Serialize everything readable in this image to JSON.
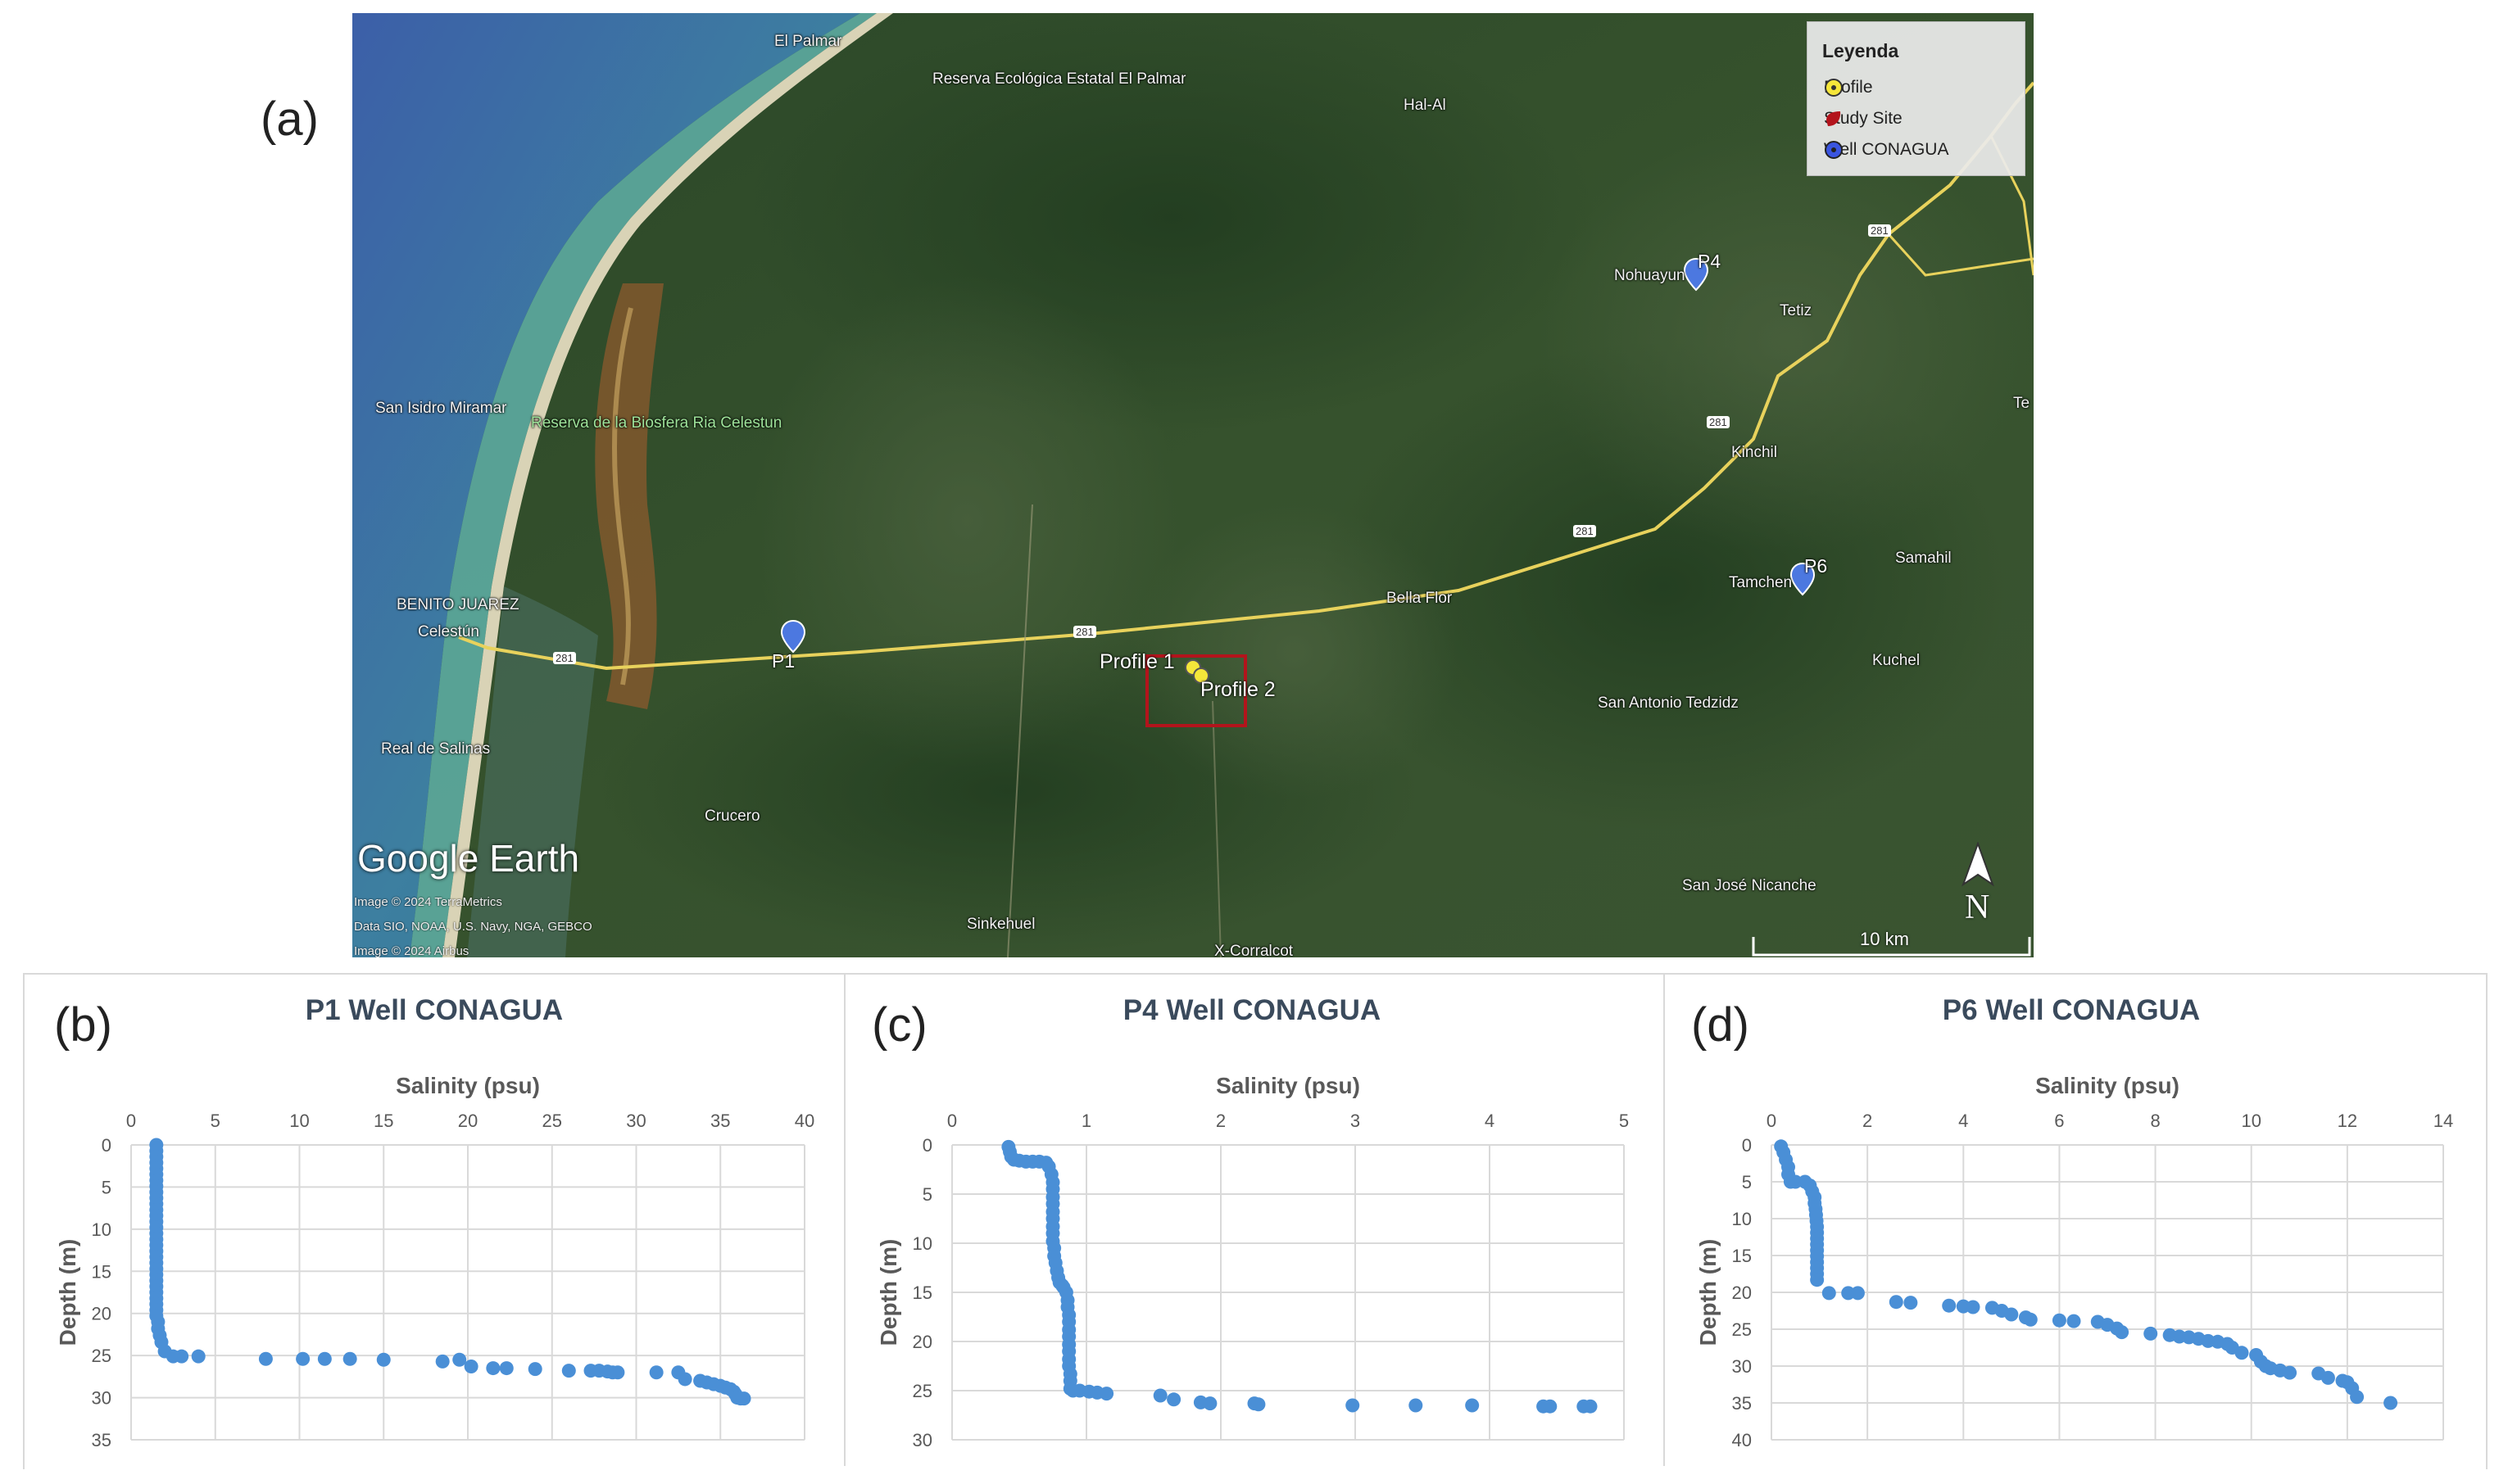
{
  "map": {
    "panel_label": "(a)",
    "legend": {
      "title": "Leyenda",
      "items": [
        {
          "label": "Profile",
          "color": "#f5e63a",
          "icon": "profile-marker-icon"
        },
        {
          "label": "Study Site",
          "color": "#b3141c",
          "icon": "study-site-icon"
        },
        {
          "label": "Well CONAGUA",
          "color": "#3a55e0",
          "icon": "well-marker-icon"
        }
      ]
    },
    "places": {
      "el_palmar": "El Palmar",
      "reserva_el_palmar": "Reserva Ecológica Estatal El Palmar",
      "hal_al": "Hal-Al",
      "nohuayun": "Nohuayun",
      "tetiz": "Tetiz",
      "san_isidro": "San Isidro Miramar",
      "reserva_celestun": "Reserva de la Biosfera Ria Celestun",
      "te": "Te",
      "kinchil": "Kinchil",
      "samahil": "Samahil",
      "tamchen": "Tamchen",
      "benito_juarez": "BENITO JUAREZ",
      "celestun": "Celestún",
      "bella_flor": "Bella Flor",
      "kuchel": "Kuchel",
      "san_antonio": "San Antonio Tedzidz",
      "real_de_salinas": "Real de Salinas",
      "crucero": "Crucero",
      "san_jose": "San José Nicanche",
      "sinkehuel": "Sinkehuel",
      "x_corralcot": "X-Corralcot"
    },
    "markers": {
      "p1": "P1",
      "p4": "P4",
      "p6": "P6",
      "profile1": "Profile 1",
      "profile2": "Profile 2"
    },
    "road_shields": [
      "281",
      "281",
      "281",
      "281",
      "281",
      "281"
    ],
    "logo": "Google Earth",
    "credits": [
      "Image © 2024 TerraMetrics",
      "Data SIO, NOAA, U.S. Navy, NGA, GEBCO",
      "Image © 2024 Airbus"
    ],
    "scale": "10 km",
    "north": "N"
  },
  "chart_data": [
    {
      "panel_label": "(b)",
      "type": "scatter",
      "title": "P1 Well CONAGUA",
      "xlabel": "Salinity (psu)",
      "ylabel": "Depth (m)",
      "xlim": [
        0,
        40
      ],
      "ylim": [
        0,
        35
      ],
      "xticks": [
        0,
        5,
        10,
        15,
        20,
        25,
        30,
        35,
        40
      ],
      "yticks": [
        0,
        5,
        10,
        15,
        20,
        25,
        30,
        35
      ],
      "y_inverted": true,
      "x_axis_position": "top",
      "grid": true,
      "color": "#4a8fd6",
      "x": [
        1.5,
        1.5,
        1.5,
        1.5,
        1.5,
        1.5,
        1.5,
        1.5,
        1.5,
        1.5,
        1.5,
        1.5,
        1.5,
        1.5,
        1.5,
        1.5,
        1.5,
        1.5,
        1.5,
        1.5,
        1.5,
        1.5,
        1.5,
        1.5,
        1.5,
        1.5,
        1.5,
        1.5,
        1.5,
        1.5,
        1.6,
        1.6,
        1.7,
        1.8,
        2.0,
        2.5,
        3.0,
        4.0,
        8.0,
        10.2,
        11.5,
        13.0,
        15.0,
        18.5,
        19.5,
        20.2,
        21.5,
        22.3,
        24.0,
        26.0,
        27.3,
        27.8,
        28.3,
        28.6,
        28.9,
        31.2,
        32.5,
        32.9,
        33.8,
        34.2,
        34.6,
        35.0,
        35.3,
        35.6,
        35.8,
        35.9,
        36.0,
        36.2,
        36.4
      ],
      "y": [
        0,
        0.7,
        1.4,
        2.1,
        2.8,
        3.5,
        4.2,
        4.9,
        5.6,
        6.3,
        7.0,
        7.7,
        8.4,
        9.1,
        9.8,
        10.5,
        11.2,
        11.9,
        12.6,
        13.3,
        14.0,
        14.7,
        15.4,
        16.1,
        16.8,
        17.5,
        18.2,
        18.9,
        19.6,
        20.3,
        21.0,
        21.8,
        22.6,
        23.4,
        24.5,
        25.1,
        25.1,
        25.1,
        25.4,
        25.4,
        25.4,
        25.4,
        25.5,
        25.7,
        25.5,
        26.3,
        26.5,
        26.5,
        26.6,
        26.8,
        26.8,
        26.8,
        26.9,
        27.0,
        27.0,
        27.0,
        27.0,
        27.8,
        28.0,
        28.2,
        28.4,
        28.6,
        28.8,
        29.0,
        29.3,
        29.6,
        30.0,
        30.1,
        30.1
      ]
    },
    {
      "panel_label": "(c)",
      "type": "scatter",
      "title": "P4 Well CONAGUA",
      "xlabel": "Salinity (psu)",
      "ylabel": "Depth (m)",
      "xlim": [
        0,
        5
      ],
      "ylim": [
        0,
        30
      ],
      "xticks": [
        0,
        1,
        2,
        3,
        4,
        5
      ],
      "yticks": [
        0,
        5,
        10,
        15,
        20,
        25,
        30
      ],
      "y_inverted": true,
      "x_axis_position": "top",
      "grid": true,
      "color": "#4a8fd6",
      "x": [
        0.42,
        0.43,
        0.44,
        0.46,
        0.5,
        0.55,
        0.6,
        0.65,
        0.7,
        0.72,
        0.74,
        0.75,
        0.75,
        0.75,
        0.75,
        0.75,
        0.75,
        0.75,
        0.75,
        0.75,
        0.76,
        0.76,
        0.77,
        0.78,
        0.79,
        0.8,
        0.82,
        0.83,
        0.85,
        0.86,
        0.86,
        0.87,
        0.87,
        0.87,
        0.87,
        0.87,
        0.87,
        0.87,
        0.87,
        0.88,
        0.88,
        0.88,
        0.9,
        0.95,
        1.02,
        1.08,
        1.15,
        1.55,
        1.65,
        1.85,
        1.92,
        2.25,
        2.28,
        2.98,
        3.45,
        3.87,
        4.4,
        4.45,
        4.7,
        4.75
      ],
      "y": [
        0.2,
        0.7,
        1.2,
        1.5,
        1.6,
        1.7,
        1.7,
        1.7,
        1.8,
        2.2,
        3.0,
        3.8,
        4.5,
        5.3,
        6.0,
        6.8,
        7.5,
        8.3,
        9.0,
        9.8,
        10.5,
        11.3,
        12.0,
        12.8,
        13.5,
        14.0,
        14.3,
        14.5,
        15.0,
        15.8,
        16.5,
        17.3,
        18.0,
        18.8,
        19.5,
        20.3,
        21.0,
        21.8,
        22.5,
        23.3,
        24.0,
        24.8,
        25.0,
        25.0,
        25.1,
        25.2,
        25.3,
        25.5,
        25.9,
        26.2,
        26.3,
        26.3,
        26.4,
        26.5,
        26.5,
        26.5,
        26.6,
        26.6,
        26.6,
        26.6
      ]
    },
    {
      "panel_label": "(d)",
      "type": "scatter",
      "title": "P6 Well CONAGUA",
      "xlabel": "Salinity (psu)",
      "ylabel": "Depth (m)",
      "xlim": [
        0,
        14
      ],
      "ylim": [
        0,
        40
      ],
      "xticks": [
        0,
        2,
        4,
        6,
        8,
        10,
        12,
        14
      ],
      "yticks": [
        0,
        5,
        10,
        15,
        20,
        25,
        30,
        35,
        40
      ],
      "y_inverted": true,
      "x_axis_position": "top",
      "grid": true,
      "color": "#4a8fd6",
      "x": [
        0.2,
        0.25,
        0.3,
        0.35,
        0.35,
        0.4,
        0.5,
        0.7,
        0.8,
        0.85,
        0.9,
        0.9,
        0.92,
        0.93,
        0.94,
        0.95,
        0.95,
        0.95,
        0.95,
        0.95,
        0.95,
        0.95,
        0.95,
        0.95,
        0.95,
        1.2,
        1.6,
        1.8,
        2.6,
        2.9,
        3.7,
        4.0,
        4.2,
        4.6,
        4.8,
        5.0,
        5.3,
        5.4,
        6.0,
        6.3,
        6.8,
        7.0,
        7.2,
        7.3,
        7.9,
        8.3,
        8.5,
        8.7,
        8.9,
        9.1,
        9.3,
        9.5,
        9.6,
        9.8,
        10.1,
        10.2,
        10.3,
        10.4,
        10.6,
        10.8,
        11.4,
        11.6,
        11.9,
        12.0,
        12.1,
        12.2,
        12.9
      ],
      "y": [
        0.2,
        1.0,
        2.0,
        3.0,
        4.0,
        5.0,
        5.0,
        5.0,
        5.5,
        6.3,
        7.1,
        7.9,
        8.7,
        9.5,
        10.3,
        11.1,
        11.9,
        12.7,
        13.5,
        14.3,
        15.1,
        15.9,
        16.7,
        17.5,
        18.3,
        20.1,
        20.1,
        20.1,
        21.3,
        21.4,
        21.8,
        21.9,
        22.0,
        22.1,
        22.5,
        23.0,
        23.4,
        23.7,
        23.8,
        23.9,
        24.0,
        24.4,
        24.9,
        25.4,
        25.6,
        25.8,
        26.0,
        26.1,
        26.3,
        26.6,
        26.7,
        27.0,
        27.5,
        28.2,
        28.5,
        29.4,
        30.0,
        30.3,
        30.6,
        30.9,
        31.0,
        31.6,
        32.0,
        32.2,
        33.0,
        34.2,
        35.0
      ]
    }
  ]
}
